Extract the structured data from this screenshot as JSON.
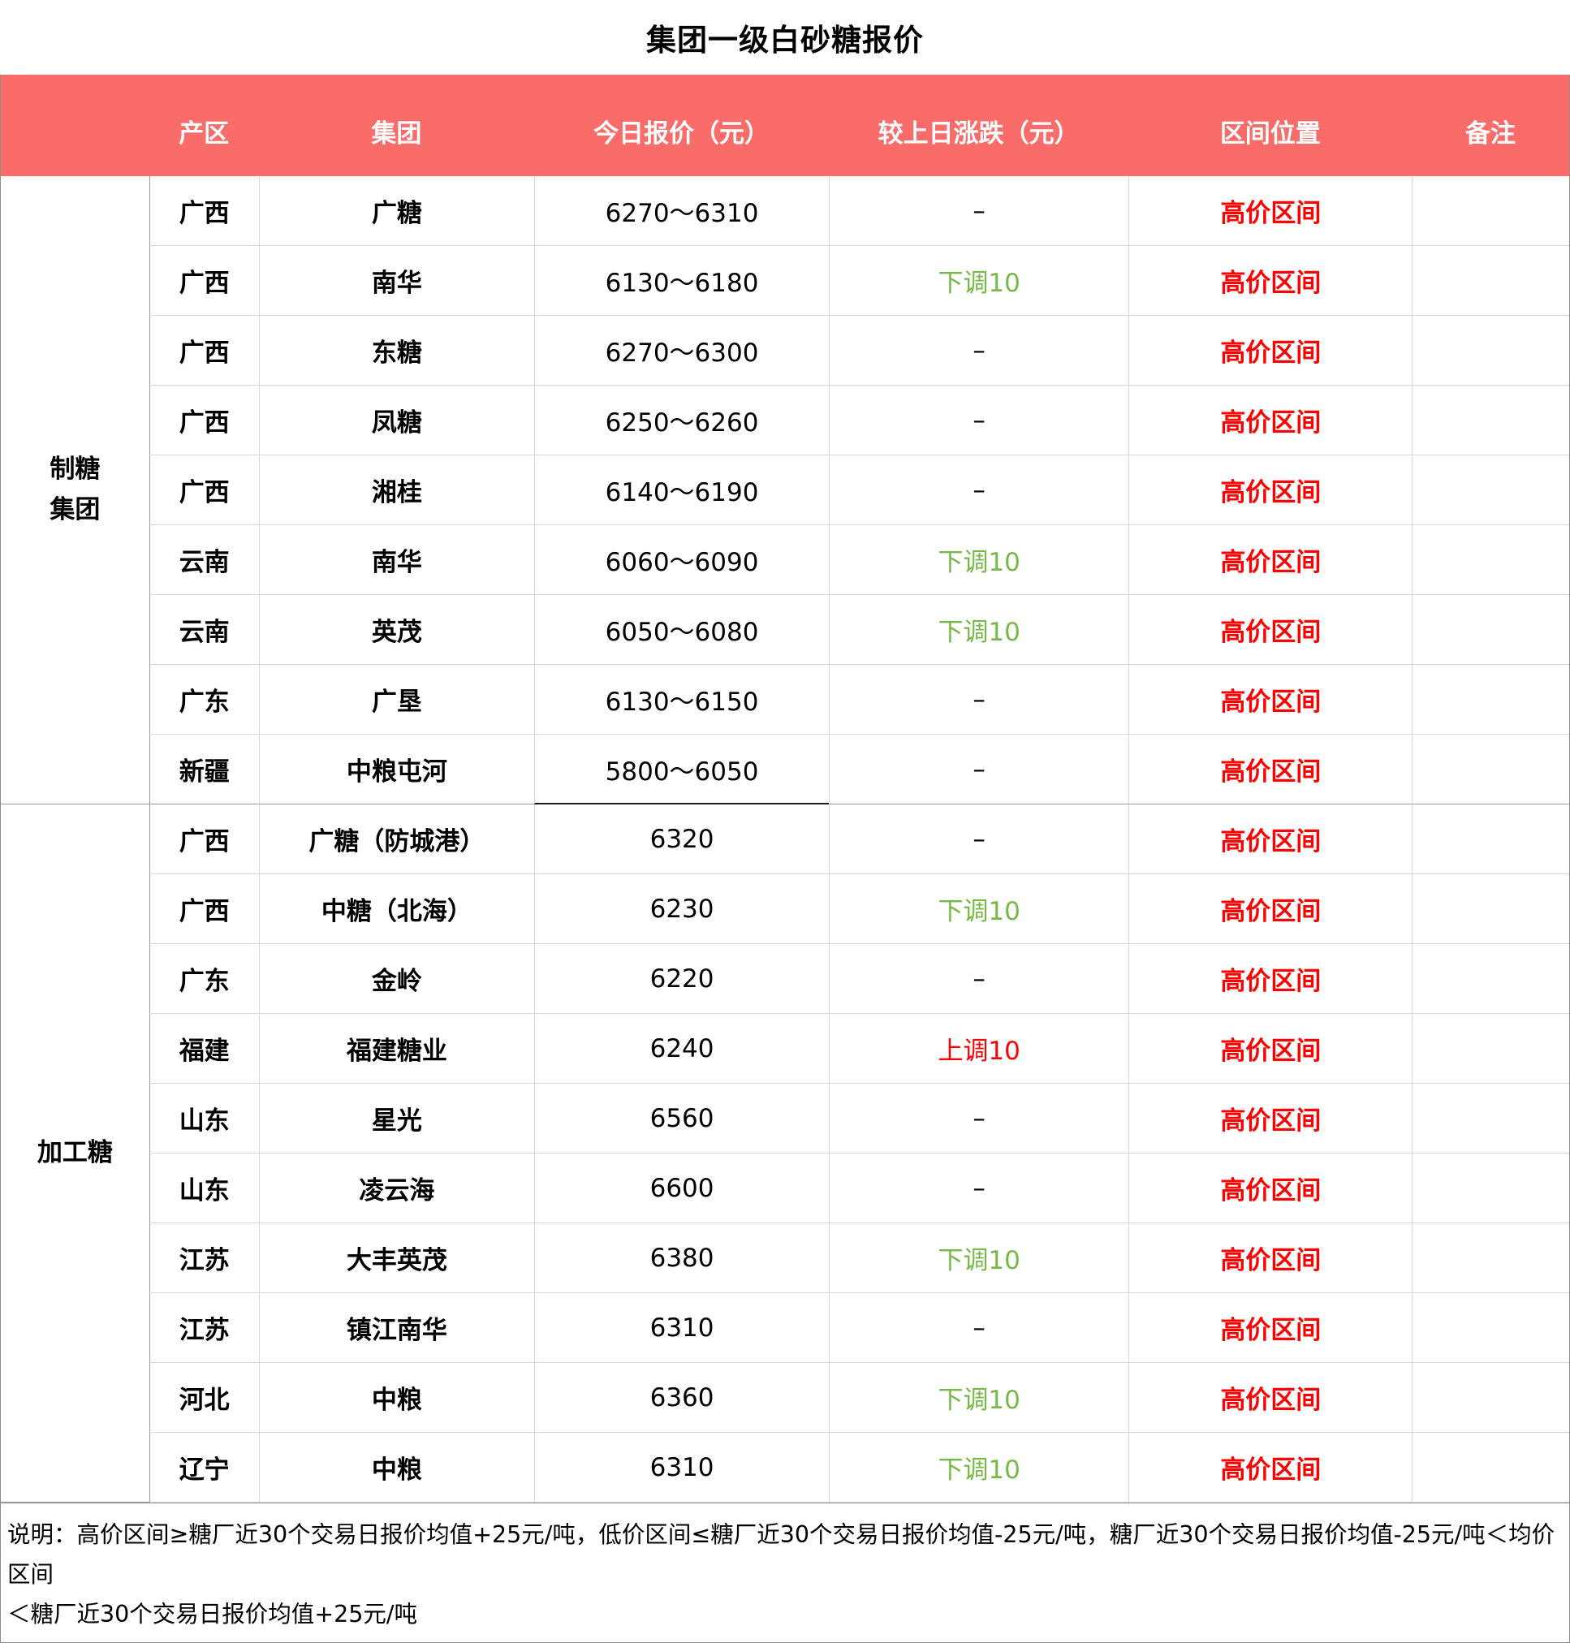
{
  "title": "集团一级白砂糖报价",
  "colors": {
    "header_bg": "#F96C69",
    "header_text": "#FFFFFF",
    "range_red": "#FE0000",
    "up_red": "#FE0000",
    "down_green": "#76B947",
    "border_light": "#D9D9D9",
    "border_mid": "#9A9A9A",
    "border_dark": "#8C8C8C"
  },
  "table": {
    "headers": [
      "产区",
      "集团",
      "今日报价（元）",
      "较上日涨跌（元）",
      "区间位置",
      "备注"
    ],
    "groups": [
      {
        "label": "制糖\n集团",
        "rows": [
          {
            "area": "广西",
            "group": "广糖",
            "price": "6270～6310",
            "change": "–",
            "change_dir": "flat",
            "range": "高价区间",
            "note": ""
          },
          {
            "area": "广西",
            "group": "南华",
            "price": "6130～6180",
            "change": "下调10",
            "change_dir": "down",
            "range": "高价区间",
            "note": ""
          },
          {
            "area": "广西",
            "group": "东糖",
            "price": "6270～6300",
            "change": "–",
            "change_dir": "flat",
            "range": "高价区间",
            "note": ""
          },
          {
            "area": "广西",
            "group": "凤糖",
            "price": "6250～6260",
            "change": "–",
            "change_dir": "flat",
            "range": "高价区间",
            "note": ""
          },
          {
            "area": "广西",
            "group": "湘桂",
            "price": "6140～6190",
            "change": "–",
            "change_dir": "flat",
            "range": "高价区间",
            "note": ""
          },
          {
            "area": "云南",
            "group": "南华",
            "price": "6060～6090",
            "change": "下调10",
            "change_dir": "down",
            "range": "高价区间",
            "note": ""
          },
          {
            "area": "云南",
            "group": "英茂",
            "price": "6050～6080",
            "change": "下调10",
            "change_dir": "down",
            "range": "高价区间",
            "note": ""
          },
          {
            "area": "广东",
            "group": "广垦",
            "price": "6130～6150",
            "change": "–",
            "change_dir": "flat",
            "range": "高价区间",
            "note": ""
          },
          {
            "area": "新疆",
            "group": "中粮屯河",
            "price": "5800～6050",
            "change": "–",
            "change_dir": "flat",
            "range": "高价区间",
            "note": ""
          }
        ]
      },
      {
        "label": "加工糖",
        "rows": [
          {
            "area": "广西",
            "group": "广糖（防城港）",
            "price": "6320",
            "change": "–",
            "change_dir": "flat",
            "range": "高价区间",
            "note": ""
          },
          {
            "area": "广西",
            "group": "中糖（北海）",
            "price": "6230",
            "change": "下调10",
            "change_dir": "down",
            "range": "高价区间",
            "note": ""
          },
          {
            "area": "广东",
            "group": "金岭",
            "price": "6220",
            "change": "–",
            "change_dir": "flat",
            "range": "高价区间",
            "note": ""
          },
          {
            "area": "福建",
            "group": "福建糖业",
            "price": "6240",
            "change": "上调10",
            "change_dir": "up",
            "range": "高价区间",
            "note": ""
          },
          {
            "area": "山东",
            "group": "星光",
            "price": "6560",
            "change": "–",
            "change_dir": "flat",
            "range": "高价区间",
            "note": ""
          },
          {
            "area": "山东",
            "group": "凌云海",
            "price": "6600",
            "change": "–",
            "change_dir": "flat",
            "range": "高价区间",
            "note": ""
          },
          {
            "area": "江苏",
            "group": "大丰英茂",
            "price": "6380",
            "change": "下调10",
            "change_dir": "down",
            "range": "高价区间",
            "note": ""
          },
          {
            "area": "江苏",
            "group": "镇江南华",
            "price": "6310",
            "change": "–",
            "change_dir": "flat",
            "range": "高价区间",
            "note": ""
          },
          {
            "area": "河北",
            "group": "中粮",
            "price": "6360",
            "change": "下调10",
            "change_dir": "down",
            "range": "高价区间",
            "note": ""
          },
          {
            "area": "辽宁",
            "group": "中粮",
            "price": "6310",
            "change": "下调10",
            "change_dir": "down",
            "range": "高价区间",
            "note": ""
          }
        ]
      }
    ]
  },
  "note": " 说明：高价区间≥糖厂近30个交易日报价均值+25元/吨，低价区间≤糖厂近30个交易日报价均值-25元/吨，糖厂近30个交易日报价均值-25元/吨＜均价区间\n＜糖厂近30个交易日报价均值+25元/吨"
}
